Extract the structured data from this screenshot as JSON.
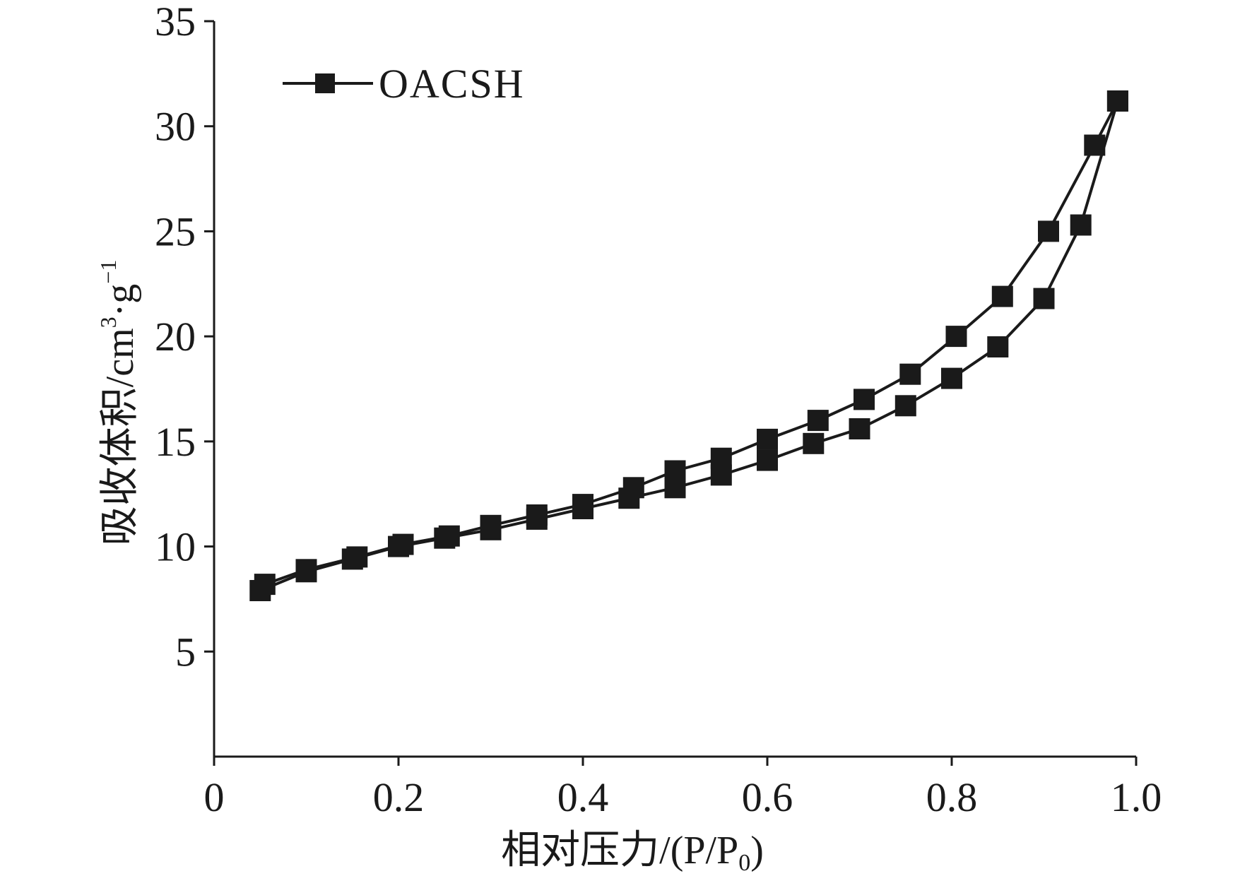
{
  "chart_data": {
    "type": "line",
    "title": "",
    "xlabel": "相对压力/(P/P",
    "xlabel_subscript": "0",
    "xlabel_suffix": ")",
    "ylabel": "吸收体积/cm",
    "ylabel_sup1": "3",
    "ylabel_mid": "·g",
    "ylabel_sup2": "−1",
    "xlim": [
      0,
      1.0
    ],
    "ylim": [
      0,
      35
    ],
    "x_ticks": [
      0,
      0.2,
      0.4,
      0.6,
      0.8,
      1.0
    ],
    "x_tick_labels": [
      "0",
      "0.2",
      "0.4",
      "0.6",
      "0.8",
      "1.0"
    ],
    "y_ticks": [
      5,
      10,
      15,
      20,
      25,
      30,
      35
    ],
    "y_tick_labels": [
      "5",
      "10",
      "15",
      "20",
      "25",
      "30",
      "35"
    ],
    "grid": false,
    "legend": {
      "position": "top-left",
      "entries": [
        "OACSH"
      ]
    },
    "series": [
      {
        "name": "OACSH",
        "color": "#1a1a1a",
        "marker": "square",
        "branches": [
          {
            "x": [
              0.05,
              0.1,
              0.15,
              0.2,
              0.25,
              0.3,
              0.35,
              0.4,
              0.45,
              0.5,
              0.55,
              0.6,
              0.65,
              0.7,
              0.75,
              0.8,
              0.85,
              0.9,
              0.94,
              0.98
            ],
            "y": [
              7.9,
              8.8,
              9.4,
              10.0,
              10.4,
              10.8,
              11.3,
              11.8,
              12.3,
              12.8,
              13.4,
              14.1,
              14.9,
              15.6,
              16.7,
              18.0,
              19.5,
              21.8,
              25.3,
              31.2
            ]
          },
          {
            "x": [
              0.98,
              0.955,
              0.905,
              0.855,
              0.805,
              0.755,
              0.705,
              0.655,
              0.6,
              0.55,
              0.5,
              0.455,
              0.4,
              0.35,
              0.3,
              0.255,
              0.205,
              0.155,
              0.1,
              0.055
            ],
            "y": [
              31.2,
              29.1,
              25.0,
              21.9,
              20.0,
              18.2,
              17.0,
              16.0,
              15.1,
              14.2,
              13.6,
              12.8,
              12.0,
              11.5,
              11.0,
              10.5,
              10.1,
              9.5,
              8.9,
              8.2
            ]
          }
        ]
      }
    ]
  }
}
